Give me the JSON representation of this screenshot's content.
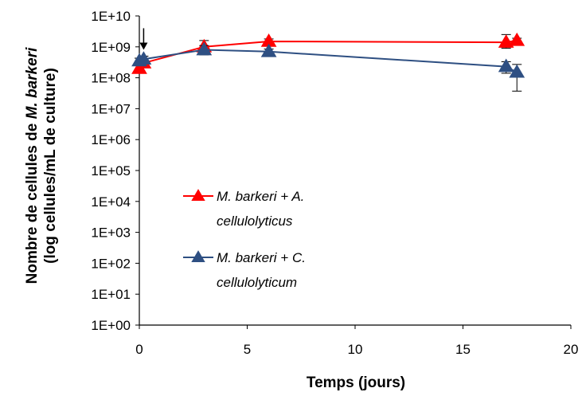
{
  "chart_data": {
    "type": "scatter",
    "title": "",
    "xlabel": "Temps (jours)",
    "ylabel_line1_prefix": "Nombre de cellules de ",
    "ylabel_line1_italic": "M. barkeri",
    "ylabel_line2": "(log cellules/mL de culture)",
    "xlim": [
      0,
      20
    ],
    "ylim_log10": [
      0,
      10
    ],
    "y_scale": "log",
    "grid": false,
    "x_tick_labels": [
      "0",
      "5",
      "10",
      "15",
      "20"
    ],
    "x_ticks": [
      0,
      5,
      10,
      15,
      20
    ],
    "y_ticks_log10": [
      0,
      1,
      2,
      3,
      4,
      5,
      6,
      7,
      8,
      9,
      10
    ],
    "y_tick_labels": [
      "1E+00",
      "1E+01",
      "1E+02",
      "1E+03",
      "1E+04",
      "1E+05",
      "1E+06",
      "1E+07",
      "1E+08",
      "1E+09",
      "1E+10"
    ],
    "legend_position": "center-left",
    "annotation": {
      "type": "arrow",
      "x": 0.2,
      "y_from": 4000000000,
      "y_to": 800000000
    },
    "series": [
      {
        "name_line1": "M. barkeri + A.",
        "name_line2": "cellulolyticus",
        "color": "#ff0000",
        "marker": "triangle",
        "x": [
          0,
          0.2,
          3,
          6,
          17,
          17.5
        ],
        "y": [
          200000000,
          300000000,
          1000000000,
          1500000000,
          1400000000,
          1600000000
        ],
        "err_low": [
          140000000,
          220000000,
          600000000,
          1200000000,
          900000000,
          1350000000
        ],
        "err_high": [
          280000000,
          400000000,
          1600000000,
          1800000000,
          2500000000,
          1900000000
        ]
      },
      {
        "name_line1": "M. barkeri + C.",
        "name_line2": "cellulolyticum",
        "color": "#2e4f82",
        "marker": "triangle",
        "x": [
          0,
          0.2,
          3,
          6,
          17,
          17.5
        ],
        "y": [
          350000000,
          400000000,
          800000000,
          700000000,
          230000000,
          150000000
        ],
        "err_low": [
          280000000,
          320000000,
          550000000,
          550000000,
          140000000,
          37000000
        ],
        "err_high": [
          430000000,
          500000000,
          1100000000,
          850000000,
          330000000,
          270000000
        ]
      }
    ]
  }
}
